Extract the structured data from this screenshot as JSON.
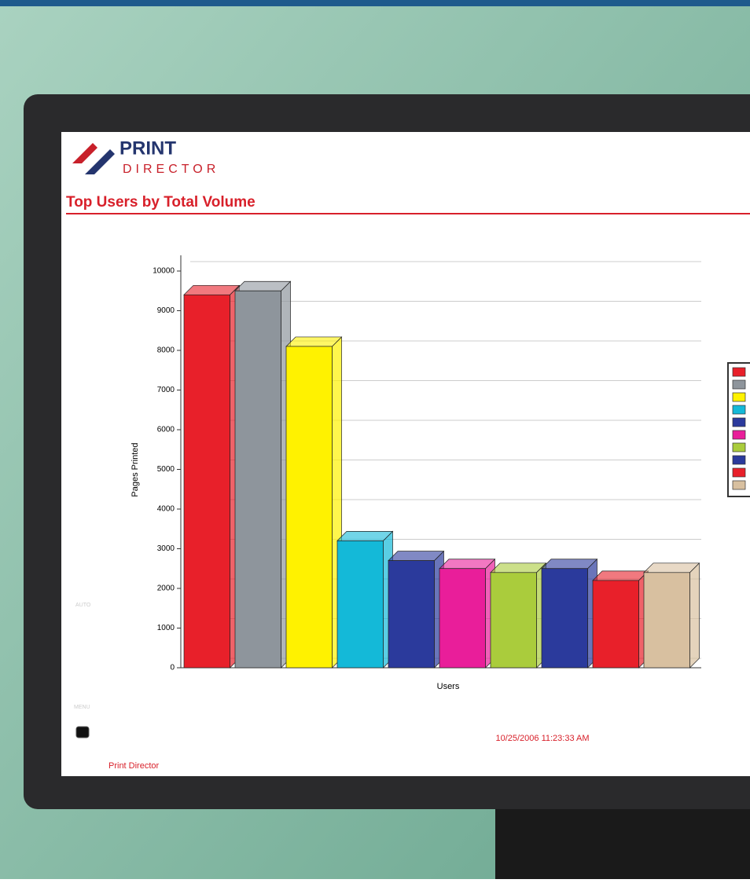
{
  "brand": {
    "top": "PRINT",
    "bottom": "DIRECTOR"
  },
  "footer": {
    "timestamp": "10/25/2006 11:23:33 AM",
    "company": "Print Director"
  },
  "monitor": {
    "buttons": [
      "AUTO",
      "MENU"
    ]
  },
  "chart_data": {
    "type": "bar3d",
    "title": "Top Users by Total Volume",
    "y_label": "Pages Printed",
    "x_label": "Users",
    "categories": [
      null,
      null,
      null,
      null,
      null,
      null,
      null,
      null,
      null,
      null
    ],
    "values": [
      9400,
      9500,
      8100,
      3200,
      2700,
      2500,
      2400,
      2500,
      2200,
      2400
    ],
    "colors": [
      "#e8202a",
      "#8e959c",
      "#fff200",
      "#14b9d8",
      "#2b3a9c",
      "#e91e9a",
      "#aacc3c",
      "#2b3a9c",
      "#e8202a",
      "#d8c0a0"
    ],
    "ylim": [
      0,
      10000
    ],
    "yticks": [
      0,
      1000,
      2000,
      3000,
      4000,
      5000,
      6000,
      7000,
      8000,
      9000,
      10000
    ],
    "grid": true,
    "legend": "right"
  }
}
